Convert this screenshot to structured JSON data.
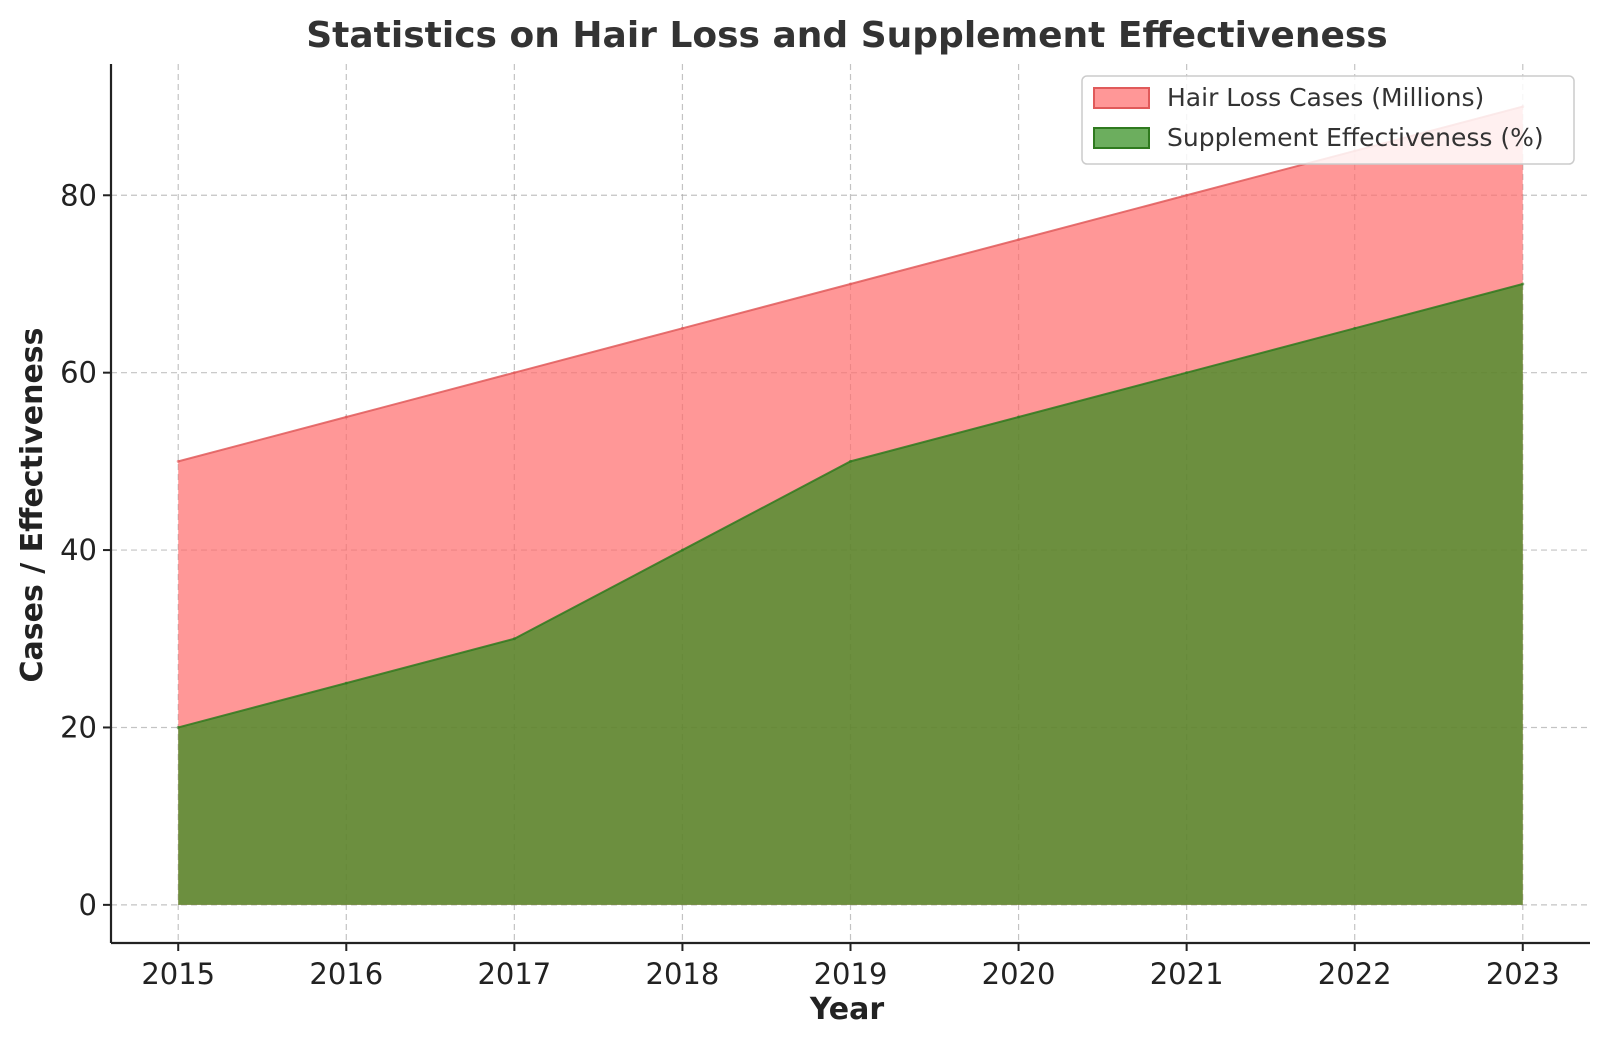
{
  "chart_data": {
    "type": "area",
    "title": "Statistics on Hair Loss and Supplement Effectiveness",
    "xlabel": "Year",
    "ylabel": "Cases / Effectiveness",
    "x": [
      2015,
      2016,
      2017,
      2018,
      2019,
      2020,
      2021,
      2022,
      2023
    ],
    "x_tick_labels": [
      "2015",
      "2016",
      "2017",
      "2018",
      "2019",
      "2020",
      "2021",
      "2022",
      "2023"
    ],
    "y_ticks": [
      0,
      20,
      40,
      60,
      80
    ],
    "y_tick_labels": [
      "0",
      "20",
      "40",
      "60",
      "80"
    ],
    "xlim": [
      2014.6,
      2023.4
    ],
    "ylim": [
      -4.3,
      94.8
    ],
    "grid": true,
    "legend_position": "top-right",
    "series": [
      {
        "name": "Hair Loss Cases (Millions)",
        "values": [
          50,
          55,
          60,
          65,
          70,
          75,
          80,
          85,
          90
        ],
        "fill": "#ff6b6b",
        "fill_opacity": 0.7,
        "stroke": "#e05a5a"
      },
      {
        "name": "Supplement Effectiveness (%)",
        "values": [
          20,
          25,
          30,
          40,
          50,
          55,
          60,
          65,
          70
        ],
        "fill": "#2e8b1a",
        "fill_opacity": 0.7,
        "stroke": "#2f7a1f"
      }
    ]
  }
}
